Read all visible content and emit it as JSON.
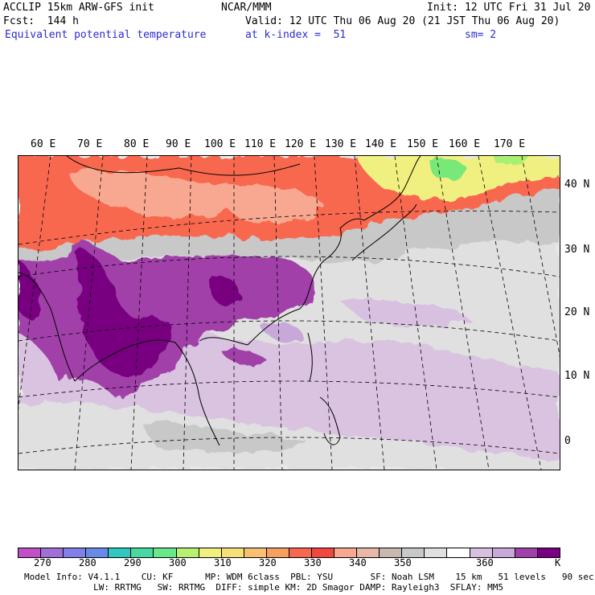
{
  "header": {
    "model": "ACCLIP 15km ARW-GFS init",
    "center": "NCAR/MMM",
    "init": "Init: 12 UTC Fri 31 Jul 20",
    "fcst": "Fcst:  144 h",
    "valid": "Valid: 12 UTC Thu 06 Aug 20 (21 JST Thu 06 Aug 20)",
    "field": "Equivalent potential temperature",
    "level": "at k-index =  51",
    "smooth": "sm= 2"
  },
  "map": {
    "lon_labels": [
      "60 E",
      "70 E",
      "80 E",
      "90 E",
      "100 E",
      "110 E",
      "120 E",
      "130 E",
      "140 E",
      "150 E",
      "160 E",
      "170 E"
    ],
    "lat_labels": [
      "40 N",
      "30 N",
      "20 N",
      "10 N",
      "0"
    ]
  },
  "colorbar": {
    "colors": [
      "#c050c8",
      "#a070d8",
      "#8080e8",
      "#6a8ae8",
      "#30c8c0",
      "#48d8a0",
      "#68e888",
      "#b8f070",
      "#f0f080",
      "#f8e078",
      "#f8c070",
      "#f8a060",
      "#f86850",
      "#f04840",
      "#f8a890",
      "#e8b8a8",
      "#c8b8b0",
      "#c8c8c8",
      "#e0e0e0",
      "#ffffff",
      "#d8c0e0",
      "#c8a8d8",
      "#a040a8",
      "#780080"
    ],
    "ticks": [
      "270",
      "280",
      "290",
      "300",
      "310",
      "320",
      "330",
      "340",
      "350",
      "360"
    ],
    "unit": "K",
    "palette": {
      "warm_north": "#f86850",
      "warm_salmon": "#f8a890",
      "gray": "#c8c8c8",
      "light_gray": "#e8e8e8",
      "lavender": "#d8c0e0",
      "purple": "#a040a8",
      "dark_purple": "#780080",
      "yellow": "#f0f080",
      "green": "#78e878"
    }
  },
  "footer": {
    "line1": "Model Info: V4.1.1    CU: KF      MP: WDM 6class  PBL: YSU       SF: Noah LSM    15 km   51 levels   90 sec",
    "line2": "             LW: RRTMG   SW: RRTMG  DIFF: simple KM: 2D Smagor DAMP: Rayleigh3  SFLAY: MM5"
  }
}
